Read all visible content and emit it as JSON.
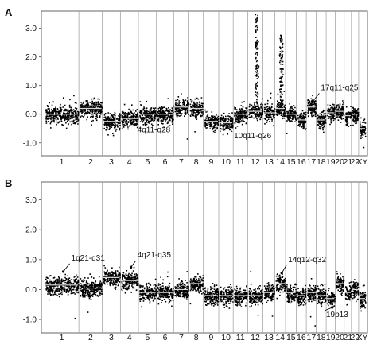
{
  "chart_data": [
    {
      "type": "scatter",
      "panel": "A",
      "xlabel": "",
      "ylabel": "",
      "ylim": [
        -1.45,
        3.6
      ],
      "yticks": [
        3.0,
        2.0,
        1.0,
        0.0,
        -1.0
      ],
      "ytick_labels": [
        "3.0",
        "2.0",
        "1.0",
        "0.0",
        "-1.0"
      ],
      "chromosomes": [
        "1",
        "2",
        "3",
        "4",
        "5",
        "6",
        "7",
        "8",
        "9",
        "10",
        "11",
        "12",
        "13",
        "14",
        "15",
        "16",
        "17",
        "18",
        "19",
        "20",
        "21",
        "22",
        "XY"
      ],
      "segments": [
        {
          "chrom": "1",
          "level": 0.0
        },
        {
          "chrom": "2",
          "level": 0.2
        },
        {
          "chrom": "3",
          "level": -0.25
        },
        {
          "chrom": "4",
          "level": -0.15
        },
        {
          "chrom": "5",
          "level": 0.0
        },
        {
          "chrom": "6",
          "level": 0.0
        },
        {
          "chrom": "7",
          "level": 0.25
        },
        {
          "chrom": "8",
          "level": 0.2
        },
        {
          "chrom": "9",
          "level": -0.25
        },
        {
          "chrom": "10",
          "level": -0.3
        },
        {
          "chrom": "11",
          "level": 0.0
        },
        {
          "chrom": "12",
          "level": 0.1
        },
        {
          "chrom": "13",
          "level": 0.05
        },
        {
          "chrom": "14",
          "level": 0.2
        },
        {
          "chrom": "15",
          "level": 0.0
        },
        {
          "chrom": "16",
          "level": -0.2
        },
        {
          "chrom": "17",
          "level": 0.25
        },
        {
          "chrom": "18",
          "level": -0.2
        },
        {
          "chrom": "19",
          "level": 0.05
        },
        {
          "chrom": "20",
          "level": 0.1
        },
        {
          "chrom": "21",
          "level": -0.05
        },
        {
          "chrom": "22",
          "level": 0.0
        },
        {
          "chrom": "XY",
          "level": -0.5
        }
      ],
      "spikes": [
        {
          "chrom": "12",
          "values": [
            1.2,
            2.0,
            2.8,
            3.5
          ]
        },
        {
          "chrom": "14",
          "values": [
            1.2,
            2.0,
            2.8
          ]
        }
      ],
      "annotations": [
        {
          "text": "17q11-q25",
          "chrom": "17",
          "y": 0.45
        },
        {
          "text": "4q11-q28",
          "chrom": "4",
          "y": -0.3
        },
        {
          "text": "10q11-q26",
          "chrom": "10",
          "y": -0.45
        }
      ]
    },
    {
      "type": "scatter",
      "panel": "B",
      "xlabel": "",
      "ylabel": "",
      "ylim": [
        -1.45,
        3.6
      ],
      "yticks": [
        3.0,
        2.0,
        1.0,
        0.0,
        -1.0
      ],
      "ytick_labels": [
        "3.0",
        "2.0",
        "1.0",
        "0.0",
        "-1.0"
      ],
      "chromosomes": [
        "1",
        "2",
        "3",
        "4",
        "5",
        "6",
        "7",
        "8",
        "9",
        "10",
        "11",
        "12",
        "13",
        "14",
        "15",
        "16",
        "17",
        "18",
        "19",
        "20",
        "21",
        "22",
        "XY"
      ],
      "segments": [
        {
          "chrom": "1",
          "level": 0.15
        },
        {
          "chrom": "2",
          "level": 0.05
        },
        {
          "chrom": "3",
          "level": 0.4
        },
        {
          "chrom": "4",
          "level": 0.3
        },
        {
          "chrom": "5",
          "level": -0.1
        },
        {
          "chrom": "6",
          "level": -0.1
        },
        {
          "chrom": "7",
          "level": 0.0
        },
        {
          "chrom": "8",
          "level": 0.2
        },
        {
          "chrom": "9",
          "level": -0.2
        },
        {
          "chrom": "10",
          "level": -0.2
        },
        {
          "chrom": "11",
          "level": -0.2
        },
        {
          "chrom": "12",
          "level": -0.2
        },
        {
          "chrom": "13",
          "level": -0.1
        },
        {
          "chrom": "14",
          "level": 0.2
        },
        {
          "chrom": "15",
          "level": -0.1
        },
        {
          "chrom": "16",
          "level": -0.2
        },
        {
          "chrom": "17",
          "level": -0.1
        },
        {
          "chrom": "18",
          "level": -0.2
        },
        {
          "chrom": "19",
          "level": -0.3
        },
        {
          "chrom": "20",
          "level": 0.2
        },
        {
          "chrom": "21",
          "level": -0.1
        },
        {
          "chrom": "22",
          "level": 0.0
        },
        {
          "chrom": "XY",
          "level": -0.3
        }
      ],
      "spikes": [],
      "annotations": [
        {
          "text": "1q21-q31",
          "chrom": "1",
          "y": 0.6
        },
        {
          "text": "4q21-q35",
          "chrom": "4",
          "y": 0.75
        },
        {
          "text": "14q12-q32",
          "chrom": "14",
          "y": 0.55
        },
        {
          "text": "19p13",
          "chrom": "19",
          "y": -0.6
        }
      ]
    }
  ]
}
